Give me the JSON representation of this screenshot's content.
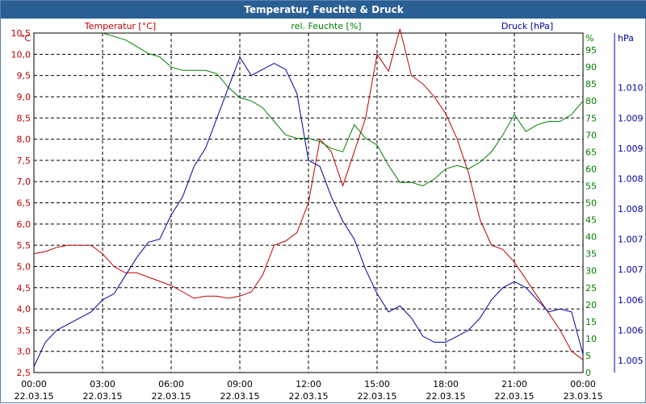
{
  "window_title": "Temperatur, Feuchte & Druck",
  "colors": {
    "temperature": "#c00000",
    "humidity": "#008000",
    "pressure": "#0000a0",
    "title_bg": "#2a5f94",
    "grid": "#000000"
  },
  "chart_data": {
    "type": "line",
    "title": "Temperatur, Feuchte & Druck",
    "grid": true,
    "x_ticks": [
      {
        "time": "00:00",
        "date": "22.03.15"
      },
      {
        "time": "03:00",
        "date": "22.03.15"
      },
      {
        "time": "06:00",
        "date": "22.03.15"
      },
      {
        "time": "09:00",
        "date": "22.03.15"
      },
      {
        "time": "12:00",
        "date": "22.03.15"
      },
      {
        "time": "15:00",
        "date": "22.03.15"
      },
      {
        "time": "18:00",
        "date": "22.03.15"
      },
      {
        "time": "21:00",
        "date": "22.03.15"
      },
      {
        "time": "00:00",
        "date": "23.03.15"
      }
    ],
    "x_range_hours": [
      0,
      24
    ],
    "axes": {
      "temperature": {
        "label": "Temperatur [°C]",
        "unit": "°C",
        "ylim": [
          2.5,
          10.5
        ],
        "ticks": [
          "2,5",
          "3,0",
          "3,5",
          "4,0",
          "4,5",
          "5,0",
          "5,5",
          "6,0",
          "6,5",
          "7,0",
          "7,5",
          "8,0",
          "8,5",
          "9,0",
          "9,5",
          "10,0",
          "10,5"
        ]
      },
      "humidity": {
        "label": "rel. Feuchte [%]",
        "unit": "%",
        "ylim": [
          0,
          100
        ],
        "ticks": [
          "0",
          "5",
          "10",
          "15",
          "20",
          "25",
          "30",
          "35",
          "40",
          "45",
          "50",
          "55",
          "60",
          "65",
          "70",
          "75",
          "80",
          "85",
          "90",
          "95"
        ]
      },
      "pressure": {
        "label": "Druck [hPa]",
        "unit": "hPa",
        "ylim": [
          1004.8,
          1010.4
        ],
        "ticks": [
          "1.005",
          "1.006",
          "1.006",
          "1.007",
          "1.007",
          "1.008",
          "1.008",
          "1.009",
          "1.009",
          "1.010"
        ]
      }
    },
    "series": [
      {
        "name": "Temperatur [°C]",
        "axis": "temperature",
        "x": [
          0,
          0.5,
          1,
          1.5,
          2,
          2.5,
          3,
          3.5,
          4,
          4.5,
          5,
          5.5,
          6,
          6.5,
          7,
          7.5,
          8,
          8.5,
          9,
          9.5,
          10,
          10.5,
          11,
          11.5,
          12,
          12.5,
          13,
          13.5,
          14,
          14.5,
          15,
          15.5,
          16,
          16.5,
          17,
          17.5,
          18,
          18.5,
          19,
          19.5,
          20,
          20.5,
          21,
          21.5,
          22,
          22.5,
          23,
          23.5,
          24
        ],
        "values": [
          5.3,
          5.35,
          5.45,
          5.5,
          5.5,
          5.5,
          5.3,
          5.0,
          4.85,
          4.85,
          4.75,
          4.65,
          4.55,
          4.4,
          4.25,
          4.3,
          4.3,
          4.25,
          4.3,
          4.4,
          4.8,
          5.5,
          5.6,
          5.8,
          6.5,
          8.0,
          7.7,
          6.9,
          7.7,
          8.5,
          10.0,
          9.6,
          10.6,
          9.5,
          9.3,
          9.0,
          8.6,
          8.0,
          7.2,
          6.1,
          5.5,
          5.4,
          5.1,
          4.7,
          4.3,
          3.9,
          3.5,
          3.0,
          2.8
        ]
      },
      {
        "name": "rel. Feuchte [%]",
        "axis": "humidity",
        "x": [
          3,
          3.5,
          4,
          4.5,
          5,
          5.5,
          6,
          6.5,
          7,
          7.5,
          8,
          8.5,
          9,
          9.5,
          10,
          10.5,
          11,
          11.5,
          12,
          12.5,
          13,
          13.5,
          14,
          14.5,
          15,
          15.5,
          16,
          16.5,
          17,
          17.5,
          18,
          18.5,
          19,
          19.5,
          20,
          20.5,
          21,
          21.5,
          22,
          22.5,
          23,
          23.5,
          24
        ],
        "values": [
          100,
          99,
          98,
          96,
          94,
          93,
          90,
          89,
          89,
          89,
          88,
          84,
          81,
          80,
          78,
          74,
          70,
          69,
          69,
          68,
          66,
          65,
          73,
          69,
          67,
          61,
          56,
          56,
          55,
          57,
          60,
          61,
          60,
          62,
          65,
          70,
          76,
          71,
          73,
          74,
          74,
          76,
          80
        ]
      },
      {
        "name": "Druck [hPa]",
        "axis": "pressure",
        "x": [
          0,
          0.5,
          1,
          1.5,
          2,
          2.5,
          3,
          3.5,
          4,
          4.5,
          5,
          5.5,
          6,
          6.5,
          7,
          7.5,
          8,
          8.5,
          9,
          9.5,
          10,
          10.5,
          11,
          11.5,
          12,
          12.5,
          13,
          13.5,
          14,
          14.5,
          15,
          15.5,
          16,
          16.5,
          17,
          17.5,
          18,
          18.5,
          19,
          19.5,
          20,
          20.5,
          21,
          21.5,
          22,
          22.5,
          23,
          23.5,
          24
        ],
        "values": [
          1004.9,
          1005.3,
          1005.5,
          1005.6,
          1005.7,
          1005.8,
          1006.0,
          1006.1,
          1006.4,
          1006.7,
          1006.95,
          1007.0,
          1007.4,
          1007.7,
          1008.2,
          1008.5,
          1009.0,
          1009.5,
          1010.0,
          1009.7,
          1009.8,
          1009.9,
          1009.8,
          1009.4,
          1008.3,
          1008.2,
          1007.7,
          1007.3,
          1007.0,
          1006.5,
          1006.1,
          1005.8,
          1005.9,
          1005.7,
          1005.4,
          1005.3,
          1005.3,
          1005.4,
          1005.5,
          1005.7,
          1006.0,
          1006.2,
          1006.3,
          1006.2,
          1006.0,
          1005.8,
          1005.85,
          1005.8,
          1005.1
        ]
      }
    ]
  }
}
